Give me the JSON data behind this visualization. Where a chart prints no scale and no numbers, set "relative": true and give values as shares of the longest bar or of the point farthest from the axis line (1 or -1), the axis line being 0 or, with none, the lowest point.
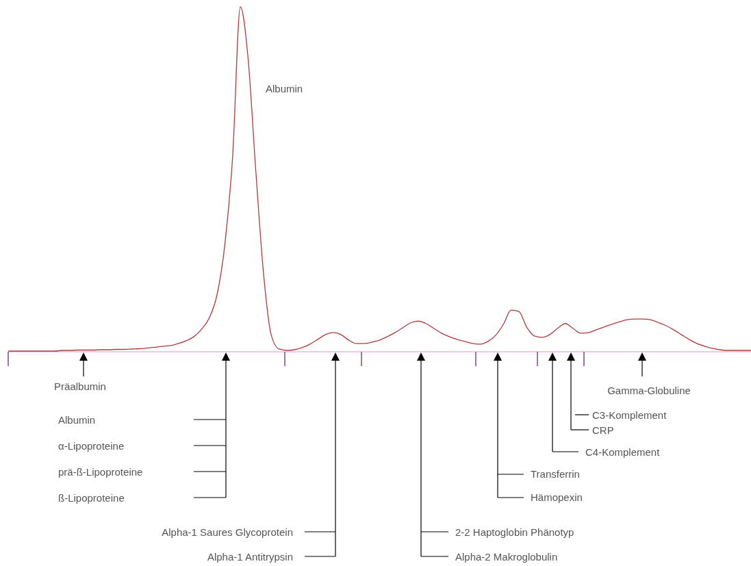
{
  "chart_data": {
    "type": "line",
    "relative": true,
    "categories": [
      null,
      null,
      null,
      null,
      null,
      null,
      null,
      null,
      null,
      null,
      null,
      null,
      null,
      null,
      null,
      null,
      null,
      null,
      null,
      null,
      null,
      null,
      null,
      null,
      null,
      null,
      null,
      null,
      null,
      null,
      null,
      null,
      null,
      null,
      null,
      null,
      null,
      null,
      null,
      null,
      null,
      null,
      null,
      null,
      null,
      null,
      null,
      null,
      null,
      null,
      null,
      null,
      null,
      null,
      null,
      null,
      null,
      null,
      null,
      null,
      null,
      null,
      null,
      null,
      null,
      null,
      null,
      null,
      null,
      null,
      null,
      null,
      null,
      null,
      null,
      null,
      null,
      null,
      null,
      null,
      null,
      null,
      null,
      null,
      null,
      null,
      null,
      null,
      null,
      null,
      null,
      null,
      null,
      null,
      null,
      null,
      null
    ],
    "series": [
      {
        "color": "#b03a3a",
        "values": [
          0,
          0,
          0,
          0,
          0,
          0,
          0,
          0.002,
          0.002,
          0.003,
          0.003,
          0.003,
          0.004,
          0.004,
          0.005,
          0.005,
          0.006,
          0.007,
          0.009,
          0.011,
          0.014,
          0.016,
          0.022,
          0.03,
          0.042,
          0.064,
          0.097,
          0.165,
          0.31,
          0.563,
          1,
          0.851,
          0.523,
          0.225,
          0.046,
          0.006,
          0.002,
          0.004,
          0.01,
          0.02,
          0.034,
          0.048,
          0.054,
          0.048,
          0.032,
          0.022,
          0.022,
          0.026,
          0.032,
          0.042,
          0.054,
          0.068,
          0.082,
          0.087,
          0.08,
          0.066,
          0.052,
          0.042,
          0.034,
          0.028,
          0.022,
          0.02,
          0.028,
          0.046,
          0.078,
          0.119,
          0.115,
          0.07,
          0.044,
          0.04,
          0.048,
          0.066,
          0.08,
          0.066,
          0.052,
          0.054,
          0.062,
          0.07,
          0.078,
          0.085,
          0.091,
          0.093,
          0.093,
          0.091,
          0.083,
          0.074,
          0.062,
          0.048,
          0.034,
          0.022,
          0.014,
          0.008,
          0.004,
          0.002,
          0.002,
          0.002,
          0.002
        ]
      }
    ],
    "annotations": [
      "Albumin",
      "Präalbumin",
      "Albumin",
      "α-Lipoproteine",
      "prä-ß-Lipoproteine",
      "ß-Lipoproteine",
      "Alpha-1 Saures Glycoprotein",
      "Alpha-1 Antitrypsin",
      "2-2 Haptoglobin Phänotyp",
      "Alpha-2 Makroglobulin",
      "Transferrin",
      "Hämopexin",
      "C4-Komplement",
      "CRP",
      "C3-Komplement",
      "Gamma-Globuline"
    ]
  }
}
